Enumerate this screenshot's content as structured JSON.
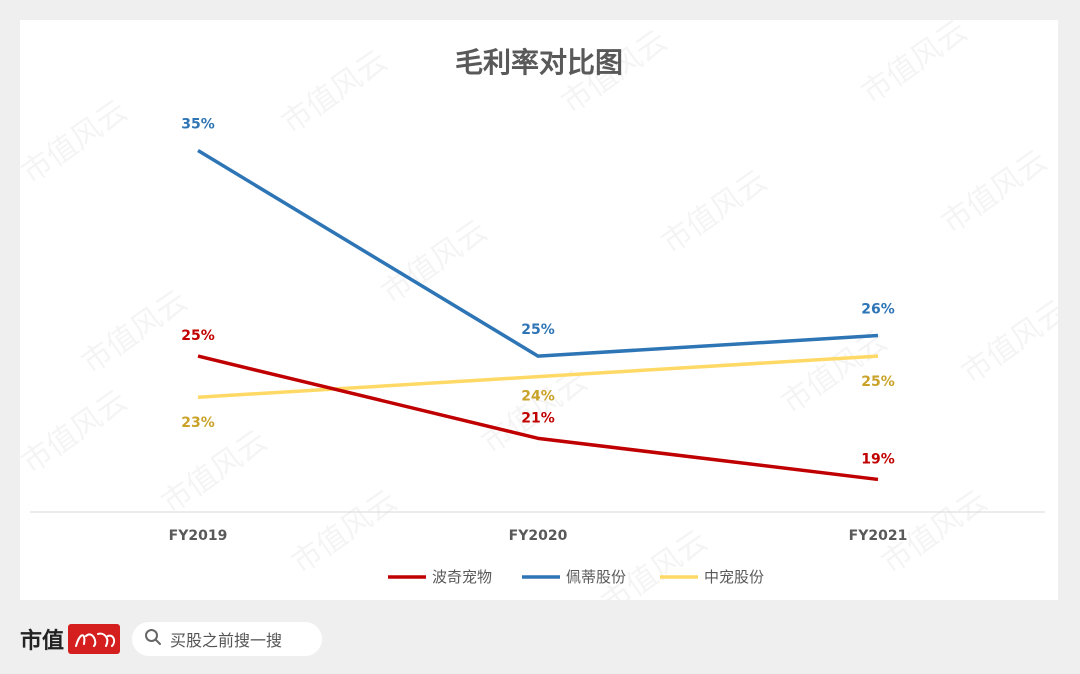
{
  "chart_data": {
    "type": "line",
    "title": "毛利率对比图",
    "categories": [
      "FY2019",
      "FY2020",
      "FY2021"
    ],
    "series": [
      {
        "name": "波奇宠物",
        "color": "#c00000",
        "values": [
          25,
          21,
          19
        ],
        "labels": [
          "25%",
          "21%",
          "19%"
        ]
      },
      {
        "name": "佩蒂股份",
        "color": "#2e75b6",
        "values": [
          35,
          25,
          26
        ],
        "labels": [
          "35%",
          "25%",
          "26%"
        ]
      },
      {
        "name": "中宠股份",
        "color": "#ffd966",
        "label_color": "#c9a227",
        "values": [
          23,
          24,
          25
        ],
        "labels": [
          "23%",
          "24%",
          "25%"
        ]
      }
    ],
    "legend_position": "bottom",
    "grid": false,
    "ylim": [
      18,
      36
    ]
  },
  "footer": {
    "brand": "市值",
    "search_placeholder": "买股之前搜一搜"
  },
  "watermark": "市值风云"
}
